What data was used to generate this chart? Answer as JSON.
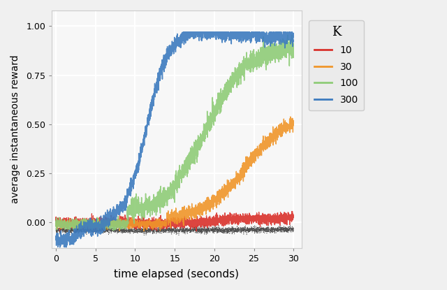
{
  "title": "",
  "xlabel": "time elapsed (seconds)",
  "ylabel": "average instantaneous reward",
  "xlim": [
    -0.5,
    31
  ],
  "ylim": [
    -0.13,
    1.08
  ],
  "yticks": [
    0.0,
    0.25,
    0.5,
    0.75,
    1.0
  ],
  "xticks": [
    0,
    5,
    10,
    15,
    20,
    25,
    30
  ],
  "colors": {
    "k10": "#d9312b",
    "k30": "#f0962a",
    "k100": "#8fcc78",
    "k300": "#3d7bbf",
    "baseline": "#333333"
  },
  "legend_title": "K",
  "legend_labels": [
    "10",
    "30",
    "100",
    "300"
  ],
  "plot_bg": "#f7f7f7",
  "fig_bg": "#f0f0f0",
  "grid_color": "#ffffff",
  "seed": 77,
  "n_points": 3000,
  "time_max": 30
}
